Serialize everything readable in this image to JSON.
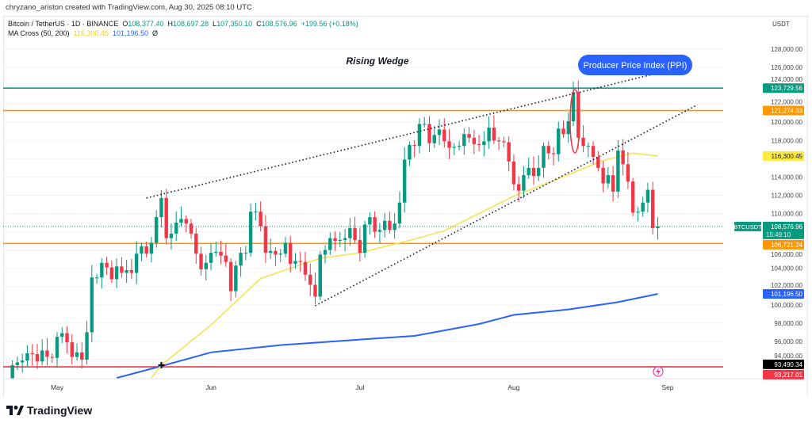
{
  "credit": "chryzano_ariston created with TradingView.com, Aug 30, 2025 08:10 UTC",
  "legend": {
    "symbol": "Bitcoin / TetherUS · 1D · BINANCE",
    "o_label": "O",
    "o": "108,377.40",
    "h_label": "H",
    "h": "108,697.28",
    "l_label": "L",
    "l": "107,350.10",
    "c_label": "C",
    "c": "108,576.96",
    "change": "+199.56 (+0.18%)",
    "ma_label": "MA Cross (50, 200)",
    "ma50": "116,300.45",
    "ma200": "101,196.50",
    "ma_extra": "Ø"
  },
  "currency": "USDT",
  "brand": "TradingView",
  "colors": {
    "up": "#089981",
    "down": "#f23645",
    "ma50": "#f5e24a",
    "ma200": "#2962ff",
    "teal_line": "#089981",
    "orange_line": "#ff9800",
    "red_line": "#f23645",
    "ppi_bubble": "#2962ff"
  },
  "chart_data": {
    "type": "candlestick",
    "title": "Bitcoin / TetherUS · 1D · BINANCE",
    "first_date": "2025-04-21",
    "closes": [
      87500,
      93400,
      93700,
      93900,
      94700,
      94600,
      93800,
      95000,
      94300,
      94200,
      96500,
      96900,
      95900,
      94300,
      94800,
      94000,
      97000,
      103000,
      103000,
      104600,
      104100,
      102800,
      104200,
      103500,
      103800,
      103500,
      105600,
      106400,
      105600,
      106800,
      109600,
      111700,
      107300,
      107800,
      109000,
      109400,
      108900,
      107800,
      105600,
      103900,
      104600,
      105700,
      105800,
      105400,
      104700,
      101500,
      104300,
      105700,
      105700,
      110200,
      110200,
      108600,
      105700,
      105900,
      105500,
      105600,
      106800,
      104500,
      104800,
      104700,
      103300,
      102200,
      100900,
      105500,
      106000,
      107300,
      107000,
      107100,
      107300,
      108400,
      107100,
      105700,
      108800,
      109600,
      108000,
      108200,
      109200,
      108200,
      108900,
      111200,
      115900,
      117500,
      117400,
      119800,
      119800,
      117700,
      118600,
      119200,
      117900,
      117200,
      117300,
      117400,
      118700,
      118300,
      117600,
      117500,
      117900,
      119400,
      118000,
      117900,
      117800,
      115700,
      113200,
      112500,
      114200,
      115000,
      114100,
      115000,
      117400,
      116600,
      116500,
      119300,
      118700,
      120100,
      123300,
      118300,
      117400,
      117400,
      116200,
      115000,
      113300,
      114200,
      112400,
      116900,
      115400,
      113500,
      110100,
      110200,
      111200,
      112600,
      108400,
      108600
    ],
    "ma50": [
      [
        "2025-05-20",
        92000
      ],
      [
        "2025-05-22",
        93400
      ],
      [
        "2025-06-01",
        97800
      ],
      [
        "2025-06-11",
        102900
      ],
      [
        "2025-06-23",
        105100
      ],
      [
        "2025-07-01",
        105700
      ],
      [
        "2025-07-12",
        107200
      ],
      [
        "2025-07-18",
        108100
      ],
      [
        "2025-08-01",
        111900
      ],
      [
        "2025-08-09",
        113600
      ],
      [
        "2025-08-19",
        115800
      ],
      [
        "2025-08-25",
        116600
      ],
      [
        "2025-08-30",
        116300
      ]
    ],
    "ma200": [
      [
        "2025-05-13",
        92000
      ],
      [
        "2025-05-22",
        93300
      ],
      [
        "2025-06-01",
        94800
      ],
      [
        "2025-06-15",
        95600
      ],
      [
        "2025-07-01",
        96200
      ],
      [
        "2025-07-12",
        96600
      ],
      [
        "2025-07-25",
        97900
      ],
      [
        "2025-08-01",
        98900
      ],
      [
        "2025-08-12",
        99500
      ],
      [
        "2025-08-22",
        100300
      ],
      [
        "2025-08-30",
        101200
      ]
    ],
    "x_ticks": [
      "May",
      "Jun",
      "Jul",
      "Aug",
      "Sep"
    ],
    "y_ticks": [
      "94,000.00",
      "96,000.00",
      "98,000.00",
      "100,000.00",
      "102,000.00",
      "104,000.00",
      "106,000.00",
      "110,000.00",
      "112,000.00",
      "114,000.00",
      "118,000.00",
      "120,000.00",
      "122,000.00",
      "124,000.00",
      "126,000.00",
      "128,000.00"
    ],
    "ylim": [
      92000,
      130000
    ],
    "levels": [
      {
        "value": 123729.56,
        "label": "123,729.56",
        "color": "#089981"
      },
      {
        "value": 121274.33,
        "label": "121,274.33",
        "color": "#ff9800"
      },
      {
        "value": 106721.24,
        "label": "106,721.24",
        "color": "#ff9800"
      },
      {
        "value": 93217.01,
        "label": "93,217.01",
        "color": "#f23645"
      }
    ],
    "price_tags": [
      {
        "value": 116300.45,
        "label": "116,300.45",
        "bg": "#ffeb3b",
        "fg": "#131722"
      },
      {
        "value": 101196.5,
        "label": "101,196.50",
        "bg": "#2962ff",
        "fg": "#ffffff"
      },
      {
        "value": 93490.34,
        "label": "93,490.34",
        "bg": "#000000",
        "fg": "#ffffff"
      }
    ],
    "last_price": {
      "symbol": "BTCUSDT",
      "value": 108576.96,
      "label": "108,576.96",
      "countdown": "15:49:10"
    },
    "wedge_upper": [
      [
        "2025-05-19",
        111700
      ],
      [
        "2025-09-03",
        125900
      ]
    ],
    "wedge_lower": [
      [
        "2025-06-22",
        99900
      ],
      [
        "2025-09-07",
        121900
      ]
    ],
    "annotations": {
      "pattern": "Rising Wedge",
      "event": "Producer Price Index (PPI)"
    }
  }
}
